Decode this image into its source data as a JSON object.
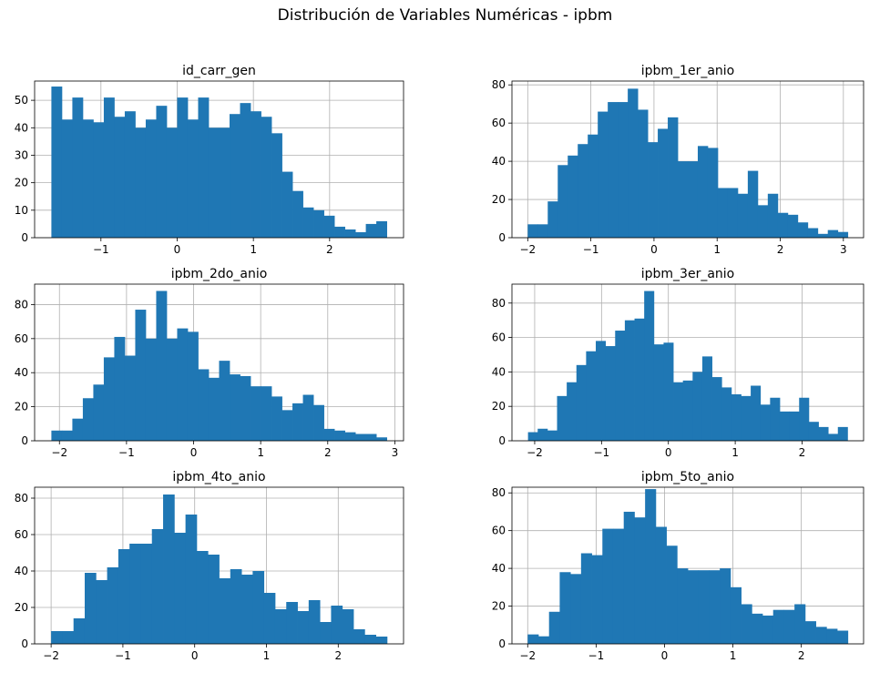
{
  "figure": {
    "suptitle": "Distribución de Variables Numéricas - ipbm"
  },
  "colors": {
    "bar": "#1f77b4",
    "grid": "#b0b0b0",
    "axis": "#000000"
  },
  "chart_data": [
    {
      "type": "bar",
      "subtype": "histogram",
      "title": "id_carr_gen",
      "x_range": [
        -1.65,
        2.75
      ],
      "xlim": [
        -1.87,
        2.97
      ],
      "ylim": [
        0,
        57
      ],
      "xticks": [
        -1,
        0,
        1,
        2
      ],
      "yticks": [
        0,
        10,
        20,
        30,
        40,
        50
      ],
      "grid": true,
      "values": [
        55,
        43,
        51,
        43,
        42,
        51,
        44,
        46,
        40,
        43,
        48,
        40,
        51,
        43,
        51,
        40,
        40,
        45,
        49,
        46,
        44,
        38,
        24,
        17,
        11,
        10,
        8,
        4,
        3,
        2,
        5,
        6
      ]
    },
    {
      "type": "bar",
      "subtype": "histogram",
      "title": "ipbm_1er_anio",
      "x_range": [
        -2.0,
        3.07
      ],
      "xlim": [
        -2.25,
        3.32
      ],
      "ylim": [
        0,
        82
      ],
      "xticks": [
        -2,
        -1,
        0,
        1,
        2,
        3
      ],
      "yticks": [
        0,
        20,
        40,
        60,
        80
      ],
      "grid": true,
      "values": [
        7,
        7,
        19,
        38,
        43,
        49,
        54,
        66,
        71,
        71,
        78,
        67,
        50,
        57,
        63,
        40,
        40,
        48,
        47,
        26,
        26,
        23,
        35,
        17,
        23,
        13,
        12,
        8,
        5,
        2,
        4,
        3
      ]
    },
    {
      "type": "bar",
      "subtype": "histogram",
      "title": "ipbm_2do_anio",
      "x_range": [
        -2.12,
        2.88
      ],
      "xlim": [
        -2.37,
        3.13
      ],
      "ylim": [
        0,
        92
      ],
      "xticks": [
        -2,
        -1,
        0,
        1,
        2,
        3
      ],
      "yticks": [
        0,
        20,
        40,
        60,
        80
      ],
      "grid": true,
      "values": [
        6,
        6,
        13,
        25,
        33,
        49,
        61,
        50,
        77,
        60,
        88,
        60,
        66,
        64,
        42,
        37,
        47,
        39,
        38,
        32,
        32,
        26,
        18,
        22,
        27,
        21,
        7,
        6,
        5,
        4,
        4,
        2
      ]
    },
    {
      "type": "bar",
      "subtype": "histogram",
      "title": "ipbm_3er_anio",
      "x_range": [
        -2.1,
        2.68
      ],
      "xlim": [
        -2.34,
        2.92
      ],
      "ylim": [
        0,
        91
      ],
      "xticks": [
        -2,
        -1,
        0,
        1,
        2
      ],
      "yticks": [
        0,
        20,
        40,
        60,
        80
      ],
      "grid": true,
      "values": [
        5,
        7,
        6,
        26,
        34,
        44,
        52,
        58,
        55,
        64,
        70,
        71,
        87,
        56,
        57,
        34,
        35,
        40,
        49,
        37,
        31,
        27,
        26,
        32,
        21,
        25,
        17,
        17,
        25,
        11,
        8,
        4,
        8
      ]
    },
    {
      "type": "bar",
      "subtype": "histogram",
      "title": "ipbm_4to_anio",
      "x_range": [
        -2.0,
        2.68
      ],
      "xlim": [
        -2.23,
        2.91
      ],
      "ylim": [
        0,
        86
      ],
      "xticks": [
        -2,
        -1,
        0,
        1,
        2
      ],
      "yticks": [
        0,
        20,
        40,
        60,
        80
      ],
      "grid": true,
      "values": [
        7,
        7,
        14,
        39,
        35,
        42,
        52,
        55,
        55,
        63,
        82,
        61,
        71,
        51,
        49,
        36,
        41,
        38,
        40,
        28,
        19,
        23,
        18,
        24,
        12,
        21,
        19,
        8,
        5,
        4
      ]
    },
    {
      "type": "bar",
      "subtype": "histogram",
      "title": "ipbm_5to_anio",
      "x_range": [
        -2.0,
        2.68
      ],
      "xlim": [
        -2.23,
        2.91
      ],
      "ylim": [
        0,
        83
      ],
      "xticks": [
        -2,
        -1,
        0,
        1,
        2
      ],
      "yticks": [
        0,
        20,
        40,
        60,
        80
      ],
      "grid": true,
      "values": [
        5,
        4,
        17,
        38,
        37,
        48,
        47,
        61,
        61,
        70,
        67,
        82,
        62,
        52,
        40,
        39,
        39,
        39,
        40,
        30,
        21,
        16,
        15,
        18,
        18,
        21,
        12,
        9,
        8,
        7
      ]
    }
  ]
}
